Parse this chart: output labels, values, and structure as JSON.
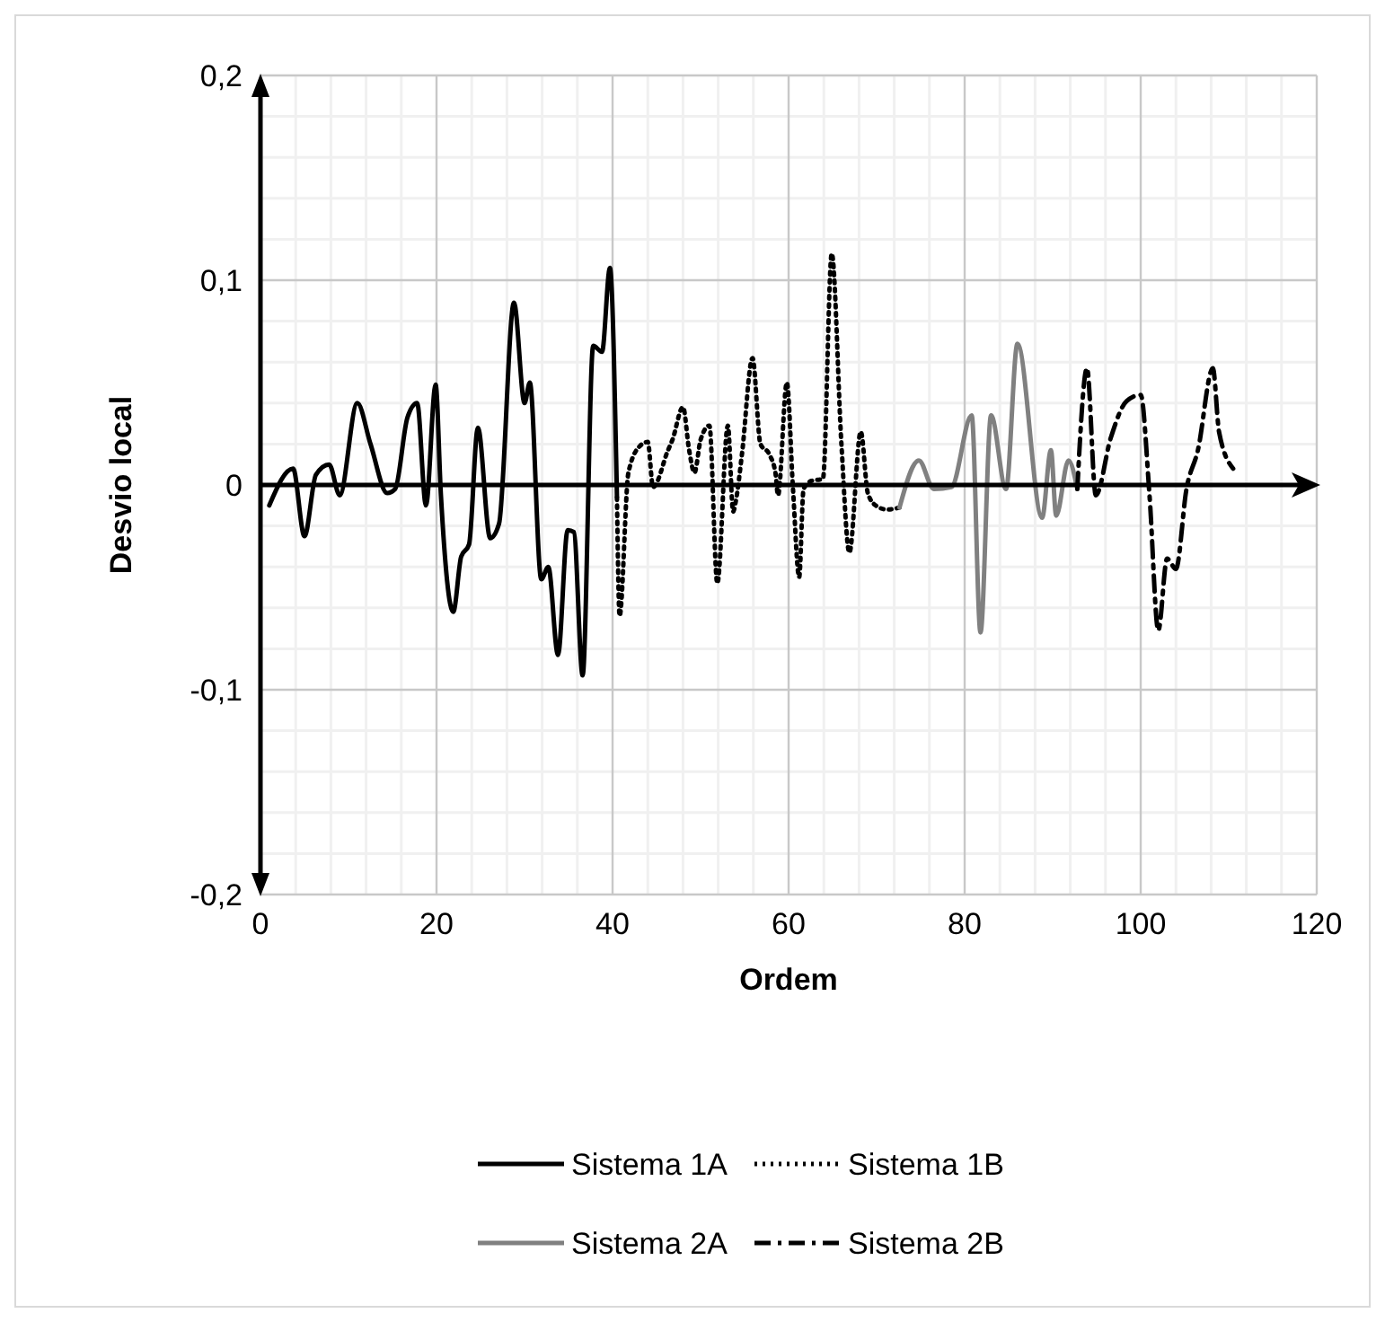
{
  "chart_data": {
    "type": "line",
    "xlabel": "Ordem",
    "ylabel": "Desvio local",
    "xlim": [
      0,
      120
    ],
    "xticks": [
      0,
      20,
      40,
      60,
      80,
      100,
      120
    ],
    "ylim": [
      -0.2,
      0.2
    ],
    "yticks": [
      {
        "value": -0.2,
        "label": "-0,2"
      },
      {
        "value": -0.1,
        "label": "-0,1"
      },
      {
        "value": 0,
        "label": "0"
      },
      {
        "value": 0.1,
        "label": "0,1"
      },
      {
        "value": 0.2,
        "label": "0,2"
      }
    ],
    "grid": true,
    "legend": "bottom",
    "series": [
      {
        "name": "Sistema 1A",
        "color": "#000000",
        "line_style": "solid",
        "x": [
          1,
          3.7,
          5,
          6.3,
          7.8,
          9,
          11,
          12.5,
          14.4,
          15.3,
          16.7,
          17.8,
          18.8,
          19.9,
          20.5,
          21.9,
          22.8,
          23.7,
          24.7,
          26.1,
          27.1,
          28.8,
          30,
          30.6,
          31.9,
          32.7,
          33.8,
          34.9,
          35.6,
          36.6,
          37.8,
          38.8,
          39.7,
          40.5
        ],
        "values": [
          -0.01,
          0.008,
          -0.025,
          0.005,
          0.01,
          -0.005,
          0.04,
          0.02,
          -0.004,
          -0.002,
          0.033,
          0.04,
          -0.01,
          0.049,
          -0.005,
          -0.062,
          -0.035,
          -0.029,
          0.028,
          -0.026,
          -0.019,
          0.089,
          0.04,
          0.05,
          -0.046,
          -0.04,
          -0.083,
          -0.022,
          -0.023,
          -0.093,
          0.068,
          0.065,
          0.106,
          -0.006
        ]
      },
      {
        "name": "Sistema 1B",
        "color": "#000000",
        "line_style": "dotted",
        "x": [
          40.5,
          40.8,
          41.8,
          43.1,
          44,
          44.6,
          46.3,
          46.8,
          48,
          48.7,
          49.3,
          50,
          51,
          51.9,
          53.1,
          53.7,
          54,
          54.7,
          55.9,
          56.8,
          57.8,
          58.5,
          58.8,
          59.8,
          60.5,
          61.2,
          61.7,
          62.6,
          63.9,
          64.9,
          66,
          66.9,
          68.2,
          69,
          69.9,
          71.2,
          72.6
        ],
        "values": [
          -0.006,
          -0.064,
          0.006,
          0.019,
          0.021,
          -0.001,
          0.017,
          0.022,
          0.038,
          0.017,
          0.006,
          0.022,
          0.029,
          -0.048,
          0.029,
          -0.013,
          -0.008,
          0.015,
          0.062,
          0.02,
          0.015,
          0.006,
          -0.005,
          0.05,
          -0.002,
          -0.045,
          -0.002,
          0.002,
          0.003,
          0.113,
          0.02,
          -0.033,
          0.026,
          -0.004,
          -0.01,
          -0.012,
          -0.011
        ]
      },
      {
        "name": "Sistema 2A",
        "color": "#808080",
        "line_style": "solid",
        "x": [
          72.6,
          74.8,
          76.5,
          78.5,
          80.8,
          81.8,
          83,
          84.7,
          86,
          88.8,
          89.8,
          90.4,
          91.8,
          92.8
        ],
        "values": [
          -0.011,
          0.012,
          -0.002,
          -0.001,
          0.034,
          -0.072,
          0.034,
          -0.002,
          0.069,
          -0.016,
          0.017,
          -0.015,
          0.012,
          -0.002
        ]
      },
      {
        "name": "Sistema 2B",
        "color": "#000000",
        "line_style": "dashed",
        "x": [
          92.8,
          93.9,
          94.9,
          96.6,
          98.4,
          100,
          101,
          102,
          103,
          104,
          105.2,
          106.5,
          108.2,
          108.9,
          110.5
        ],
        "values": [
          -0.002,
          0.057,
          -0.005,
          0.023,
          0.041,
          0.044,
          -0.005,
          -0.071,
          -0.036,
          -0.041,
          -0.002,
          0.017,
          0.057,
          0.026,
          0.008
        ]
      }
    ]
  }
}
